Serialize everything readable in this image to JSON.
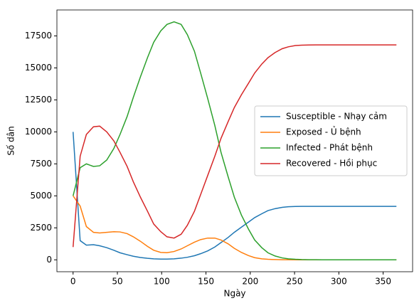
{
  "chart_data": {
    "type": "line",
    "x_label": "Ngày",
    "y_label": "Số dân",
    "x": [
      0,
      8,
      15,
      23,
      30,
      38,
      46,
      53,
      61,
      68,
      76,
      84,
      91,
      99,
      106,
      114,
      122,
      129,
      137,
      144,
      152,
      160,
      167,
      175,
      182,
      190,
      198,
      205,
      213,
      220,
      228,
      236,
      243,
      251,
      258,
      266,
      274,
      281,
      289,
      296,
      304,
      312,
      319,
      327,
      334,
      342,
      350,
      357,
      365
    ],
    "series": [
      {
        "name": "Susceptible - Nhạy cảm",
        "color": "#1f77b4",
        "values": [
          10000,
          1500,
          1150,
          1180,
          1100,
          950,
          750,
          550,
          400,
          280,
          180,
          120,
          80,
          60,
          60,
          80,
          130,
          200,
          320,
          480,
          700,
          1000,
          1350,
          1750,
          2150,
          2550,
          2950,
          3300,
          3600,
          3850,
          4000,
          4100,
          4150,
          4170,
          4180,
          4180,
          4180,
          4180,
          4180,
          4180,
          4180,
          4180,
          4180,
          4180,
          4180,
          4180,
          4180,
          4180,
          4180
        ]
      },
      {
        "name": "Exposed - Ủ bệnh",
        "color": "#ff7f0e",
        "values": [
          5000,
          4200,
          2600,
          2150,
          2100,
          2150,
          2200,
          2180,
          2050,
          1800,
          1450,
          1050,
          750,
          580,
          560,
          650,
          850,
          1100,
          1380,
          1580,
          1700,
          1700,
          1550,
          1250,
          900,
          580,
          330,
          170,
          80,
          40,
          20,
          10,
          5,
          2,
          0,
          0,
          0,
          0,
          0,
          0,
          0,
          0,
          0,
          0,
          0,
          0,
          0,
          0,
          0
        ]
      },
      {
        "name": "Infected - Phát bệnh",
        "color": "#2ca02c",
        "values": [
          5000,
          7200,
          7500,
          7300,
          7350,
          7800,
          8700,
          9800,
          11200,
          12700,
          14300,
          15800,
          17000,
          17900,
          18400,
          18600,
          18400,
          17600,
          16300,
          14600,
          12600,
          10500,
          8400,
          6500,
          4900,
          3500,
          2400,
          1550,
          950,
          550,
          300,
          150,
          80,
          40,
          20,
          10,
          5,
          2,
          0,
          0,
          0,
          0,
          0,
          0,
          0,
          0,
          0,
          0,
          0
        ]
      },
      {
        "name": "Recovered - Hồi phục",
        "color": "#d62728",
        "values": [
          1000,
          8100,
          9800,
          10400,
          10450,
          10000,
          9300,
          8400,
          7300,
          6100,
          4900,
          3800,
          2800,
          2200,
          1800,
          1700,
          2000,
          2700,
          3800,
          5100,
          6600,
          8100,
          9500,
          10800,
          11900,
          12900,
          13800,
          14600,
          15300,
          15800,
          16200,
          16500,
          16650,
          16750,
          16780,
          16790,
          16800,
          16800,
          16800,
          16800,
          16800,
          16800,
          16800,
          16800,
          16800,
          16800,
          16800,
          16800,
          16800
        ]
      }
    ],
    "xlim": [
      -18.25,
      383.25
    ],
    "ylim": [
      -930,
      19530
    ],
    "xticks": [
      0,
      50,
      100,
      150,
      200,
      250,
      300,
      350
    ],
    "yticks": [
      0,
      2500,
      5000,
      7500,
      10000,
      12500,
      15000,
      17500
    ],
    "legend": "center right"
  }
}
